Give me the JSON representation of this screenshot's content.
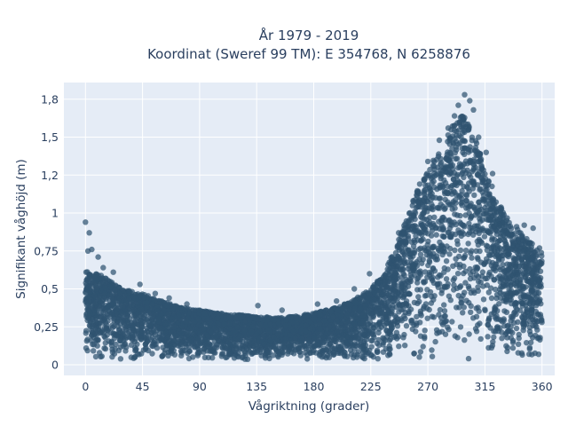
{
  "chart_data": {
    "type": "scatter",
    "title_line1": "År 1979 - 2019",
    "title_line2": "Koordinat (Sweref 99 TM): E 354768, N 6258876",
    "xlabel": "Vågriktning (grader)",
    "ylabel": "Signifikant våghöjd (m)",
    "xlim": [
      -17,
      370
    ],
    "ylim": [
      -0.07,
      1.86
    ],
    "xticks": [
      0,
      45,
      90,
      135,
      180,
      225,
      270,
      315,
      360
    ],
    "xtick_labels": [
      "0",
      "45",
      "90",
      "135",
      "180",
      "225",
      "270",
      "315",
      "360"
    ],
    "yticks": [
      0,
      0.25,
      0.5,
      0.75,
      1,
      1.25,
      1.5,
      1.75
    ],
    "ytick_labels": [
      "0",
      "0,25",
      "0,5",
      "0,75",
      "1",
      "1,2",
      "1,5",
      "1,8"
    ],
    "grid": true,
    "colors": {
      "marker": "#2f5370",
      "plot_bg": "#e5ecf6",
      "grid": "#ffffff",
      "text": "#2a3f5f"
    },
    "envelope": {
      "x": [
        0,
        10,
        20,
        30,
        45,
        60,
        75,
        90,
        105,
        120,
        135,
        150,
        165,
        180,
        195,
        210,
        225,
        235,
        245,
        255,
        265,
        275,
        285,
        292,
        298,
        305,
        315,
        325,
        335,
        345,
        352,
        360
      ],
      "y_max": [
        0.62,
        0.6,
        0.55,
        0.5,
        0.47,
        0.42,
        0.38,
        0.36,
        0.34,
        0.33,
        0.32,
        0.31,
        0.32,
        0.34,
        0.37,
        0.42,
        0.5,
        0.6,
        0.78,
        1.02,
        1.22,
        1.36,
        1.5,
        1.62,
        1.65,
        1.55,
        1.3,
        1.08,
        0.94,
        0.86,
        0.8,
        0.74
      ],
      "y_min": 0.03
    },
    "outliers": [
      {
        "x": 0,
        "y": 0.94
      },
      {
        "x": 3,
        "y": 0.87
      },
      {
        "x": 2,
        "y": 0.75
      },
      {
        "x": 5,
        "y": 0.76
      },
      {
        "x": 10,
        "y": 0.71
      },
      {
        "x": 14,
        "y": 0.64
      },
      {
        "x": 22,
        "y": 0.61
      },
      {
        "x": 43,
        "y": 0.53
      },
      {
        "x": 55,
        "y": 0.47
      },
      {
        "x": 66,
        "y": 0.44
      },
      {
        "x": 80,
        "y": 0.4
      },
      {
        "x": 136,
        "y": 0.39
      },
      {
        "x": 155,
        "y": 0.36
      },
      {
        "x": 183,
        "y": 0.4
      },
      {
        "x": 198,
        "y": 0.42
      },
      {
        "x": 212,
        "y": 0.5
      },
      {
        "x": 224,
        "y": 0.6
      },
      {
        "x": 247,
        "y": 0.87
      },
      {
        "x": 263,
        "y": 1.07
      },
      {
        "x": 270,
        "y": 1.34
      },
      {
        "x": 279,
        "y": 1.48
      },
      {
        "x": 286,
        "y": 1.56
      },
      {
        "x": 291,
        "y": 1.64
      },
      {
        "x": 294,
        "y": 1.71
      },
      {
        "x": 299,
        "y": 1.78
      },
      {
        "x": 303,
        "y": 1.74
      },
      {
        "x": 306,
        "y": 1.68
      },
      {
        "x": 310,
        "y": 1.5
      },
      {
        "x": 316,
        "y": 1.4
      },
      {
        "x": 321,
        "y": 1.26
      },
      {
        "x": 340,
        "y": 0.91
      },
      {
        "x": 346,
        "y": 0.92
      },
      {
        "x": 353,
        "y": 0.9
      },
      {
        "x": 358,
        "y": 0.77
      }
    ]
  }
}
